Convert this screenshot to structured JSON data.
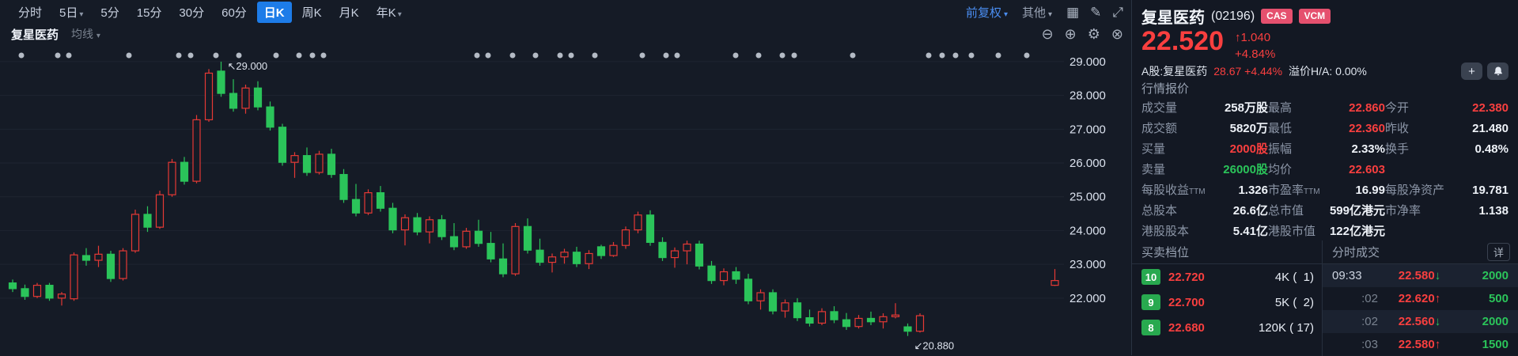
{
  "toolbar": {
    "tabs": [
      {
        "id": "minute",
        "label": "分时",
        "active": false,
        "chevron": false
      },
      {
        "id": "5day",
        "label": "5日",
        "active": false,
        "chevron": true
      },
      {
        "id": "5min",
        "label": "5分",
        "active": false,
        "chevron": false
      },
      {
        "id": "15min",
        "label": "15分",
        "active": false,
        "chevron": false
      },
      {
        "id": "30min",
        "label": "30分",
        "active": false,
        "chevron": false
      },
      {
        "id": "60min",
        "label": "60分",
        "active": false,
        "chevron": false
      },
      {
        "id": "daily-k",
        "label": "日K",
        "active": true,
        "chevron": false
      },
      {
        "id": "weekly-k",
        "label": "周K",
        "active": false,
        "chevron": false
      },
      {
        "id": "monthly-k",
        "label": "月K",
        "active": false,
        "chevron": false
      },
      {
        "id": "yearly-k",
        "label": "年K",
        "active": false,
        "chevron": true
      }
    ],
    "adjust_label": "前复权",
    "other_label": "其他",
    "icons": [
      {
        "name": "grid-layout-icon",
        "glyph": "▦"
      },
      {
        "name": "draw-pencil-icon",
        "glyph": "✎"
      },
      {
        "name": "fullscreen-icon",
        "glyph": "⤢"
      }
    ]
  },
  "chart_header": {
    "title": "复星医药",
    "ma_label": "均线",
    "icons": [
      {
        "name": "zoom-out-icon",
        "glyph": "⊖"
      },
      {
        "name": "zoom-in-icon",
        "glyph": "⊕"
      },
      {
        "name": "settings-gear-icon",
        "glyph": "⚙"
      },
      {
        "name": "close-chart-icon",
        "glyph": "⊗"
      }
    ]
  },
  "chart_data": {
    "type": "candlestick",
    "title": "复星医药 日K (前复权)",
    "ylim": [
      20.31,
      29.42
    ],
    "y_ticks": [
      29.0,
      28.0,
      27.0,
      26.0,
      25.0,
      24.0,
      23.0,
      22.0
    ],
    "tick_decimals": 3,
    "grid": true,
    "legend_position": "none",
    "colors": {
      "up": "#e53935",
      "down": "#2bc45a",
      "grid": "#1e2531",
      "axis_text": "#dbe2ee",
      "dot": "#b4bbc5"
    },
    "annotations": [
      {
        "name": "high-annotation",
        "text": "29.000",
        "arrow": "↖",
        "candle_index": 17,
        "anchor": "high"
      },
      {
        "name": "low-annotation",
        "text": "20.880",
        "arrow": "↙",
        "candle_index": 73,
        "anchor": "low"
      }
    ],
    "event_dot_x": [
      27,
      73,
      87,
      163,
      226,
      241,
      273,
      302,
      349,
      378,
      395,
      409,
      603,
      617,
      648,
      677,
      708,
      722,
      752,
      812,
      842,
      856,
      930,
      959,
      989,
      1004,
      1078,
      1174,
      1191,
      1208,
      1228,
      1262,
      1298
    ],
    "candles": [
      [
        22.45,
        22.55,
        22.18,
        22.28
      ],
      [
        22.28,
        22.4,
        21.95,
        22.05
      ],
      [
        22.05,
        22.45,
        22.0,
        22.38
      ],
      [
        22.38,
        22.45,
        21.92,
        22.0
      ],
      [
        22.0,
        22.18,
        21.78,
        22.12
      ],
      [
        21.98,
        23.35,
        21.92,
        23.28
      ],
      [
        23.26,
        23.48,
        22.96,
        23.12
      ],
      [
        23.12,
        23.55,
        22.92,
        23.3
      ],
      [
        23.3,
        23.4,
        22.48,
        22.58
      ],
      [
        22.58,
        23.48,
        22.52,
        23.4
      ],
      [
        23.4,
        24.62,
        23.34,
        24.48
      ],
      [
        24.48,
        24.72,
        23.96,
        24.1
      ],
      [
        24.1,
        25.18,
        24.05,
        25.06
      ],
      [
        25.06,
        26.12,
        25.0,
        26.02
      ],
      [
        26.02,
        26.18,
        25.36,
        25.46
      ],
      [
        25.46,
        27.42,
        25.4,
        27.28
      ],
      [
        27.28,
        28.78,
        27.22,
        28.66
      ],
      [
        28.72,
        29.0,
        27.96,
        28.06
      ],
      [
        28.06,
        28.48,
        27.52,
        27.62
      ],
      [
        27.62,
        28.32,
        27.46,
        28.22
      ],
      [
        28.22,
        28.42,
        27.56,
        27.66
      ],
      [
        27.66,
        27.82,
        26.96,
        27.06
      ],
      [
        27.06,
        27.16,
        25.92,
        26.02
      ],
      [
        26.02,
        26.32,
        25.56,
        26.22
      ],
      [
        26.22,
        26.46,
        25.62,
        25.72
      ],
      [
        25.72,
        26.36,
        25.66,
        26.26
      ],
      [
        26.26,
        26.42,
        25.56,
        25.66
      ],
      [
        25.66,
        25.82,
        24.82,
        24.92
      ],
      [
        24.92,
        25.38,
        24.42,
        24.52
      ],
      [
        24.52,
        25.22,
        24.46,
        25.12
      ],
      [
        25.12,
        25.32,
        24.56,
        24.66
      ],
      [
        24.66,
        24.82,
        23.92,
        24.02
      ],
      [
        24.02,
        24.48,
        23.56,
        24.38
      ],
      [
        24.38,
        24.52,
        23.86,
        23.96
      ],
      [
        23.96,
        24.42,
        23.62,
        24.32
      ],
      [
        24.32,
        24.46,
        23.72,
        23.82
      ],
      [
        23.82,
        24.22,
        23.42,
        23.52
      ],
      [
        23.52,
        24.08,
        23.46,
        23.98
      ],
      [
        23.98,
        24.32,
        23.52,
        23.62
      ],
      [
        23.62,
        23.96,
        23.06,
        23.16
      ],
      [
        23.16,
        23.62,
        22.62,
        22.72
      ],
      [
        22.72,
        24.22,
        22.66,
        24.12
      ],
      [
        24.12,
        24.36,
        23.32,
        23.42
      ],
      [
        23.42,
        23.76,
        22.96,
        23.06
      ],
      [
        23.06,
        23.32,
        22.76,
        23.22
      ],
      [
        23.22,
        23.46,
        23.02,
        23.36
      ],
      [
        23.36,
        23.52,
        22.92,
        23.02
      ],
      [
        23.02,
        23.42,
        22.86,
        23.32
      ],
      [
        23.52,
        23.58,
        23.16,
        23.26
      ],
      [
        23.26,
        23.66,
        23.22,
        23.56
      ],
      [
        23.56,
        24.12,
        23.46,
        24.02
      ],
      [
        24.02,
        24.56,
        23.92,
        24.46
      ],
      [
        24.46,
        24.6,
        23.55,
        23.65
      ],
      [
        23.65,
        23.8,
        23.1,
        23.2
      ],
      [
        23.2,
        23.5,
        22.9,
        23.4
      ],
      [
        23.4,
        23.7,
        23.0,
        23.6
      ],
      [
        23.6,
        23.7,
        22.85,
        22.95
      ],
      [
        22.95,
        23.1,
        22.42,
        22.52
      ],
      [
        22.52,
        22.88,
        22.38,
        22.78
      ],
      [
        22.78,
        22.92,
        22.42,
        22.56
      ],
      [
        22.56,
        22.72,
        21.82,
        21.92
      ],
      [
        21.92,
        22.26,
        21.66,
        22.16
      ],
      [
        22.16,
        22.26,
        21.52,
        21.62
      ],
      [
        21.62,
        21.96,
        21.42,
        21.86
      ],
      [
        21.86,
        22.0,
        21.32,
        21.42
      ],
      [
        21.42,
        21.66,
        21.16,
        21.26
      ],
      [
        21.26,
        21.7,
        21.2,
        21.6
      ],
      [
        21.6,
        21.76,
        21.26,
        21.36
      ],
      [
        21.36,
        21.56,
        21.06,
        21.16
      ],
      [
        21.16,
        21.5,
        21.1,
        21.4
      ],
      [
        21.4,
        21.6,
        21.2,
        21.3
      ],
      [
        21.3,
        21.55,
        21.1,
        21.45
      ],
      [
        21.45,
        21.85,
        21.4,
        21.5
      ],
      [
        21.15,
        21.25,
        20.88,
        21.02
      ],
      [
        21.02,
        21.55,
        20.98,
        21.48
      ],
      null,
      null,
      null,
      null,
      null,
      null,
      null,
      null,
      null,
      null,
      [
        22.38,
        22.86,
        22.36,
        22.52
      ]
    ]
  },
  "panel": {
    "name": "复星医药",
    "code": "(02196)",
    "badges": [
      "CAS",
      "VCM"
    ],
    "price": "22.520",
    "change_arrow": "↑",
    "change_value": "1.040",
    "change_pct": "+4.84%",
    "ashare": {
      "label": "A股:复星医药",
      "price": "28.67",
      "pct": "+4.44%",
      "premium": "溢价H/A: 0.00%"
    },
    "quote_section_title": "行情报价",
    "quote_rows": [
      [
        {
          "label": "成交量",
          "value": "258万股",
          "color": "white"
        },
        {
          "label": "最高",
          "value": "22.860",
          "color": "red"
        },
        {
          "label": "今开",
          "value": "22.380",
          "color": "red"
        }
      ],
      [
        {
          "label": "成交额",
          "value": "5820万",
          "color": "white"
        },
        {
          "label": "最低",
          "value": "22.360",
          "color": "red"
        },
        {
          "label": "昨收",
          "value": "21.480",
          "color": "white"
        }
      ],
      [
        {
          "label": "买量",
          "value": "2000股",
          "color": "red"
        },
        {
          "label": "振幅",
          "value": "2.33%",
          "color": "white"
        },
        {
          "label": "换手",
          "value": "0.48%",
          "color": "white"
        }
      ],
      [
        {
          "label": "卖量",
          "value": "26000股",
          "color": "green"
        },
        {
          "label": "均价",
          "value": "22.603",
          "color": "red"
        },
        {
          "label": "",
          "value": "",
          "color": "white"
        }
      ]
    ],
    "fundamental_rows": [
      [
        {
          "label": "每股收益TTM",
          "value": "1.326",
          "color": "white"
        },
        {
          "label": "市盈率TTM",
          "value": "16.99",
          "color": "white"
        },
        {
          "label": "每股净资产",
          "value": "19.781",
          "color": "white"
        }
      ],
      [
        {
          "label": "总股本",
          "value": "26.6亿",
          "color": "white"
        },
        {
          "label": "总市值",
          "value": "599亿港元",
          "color": "white"
        },
        {
          "label": "市净率",
          "value": "1.138",
          "color": "white"
        }
      ],
      [
        {
          "label": "港股股本",
          "value": "5.41亿",
          "color": "white"
        },
        {
          "label": "港股市值",
          "value": "122亿港元",
          "color": "white"
        },
        {
          "label": "",
          "value": "",
          "color": "white"
        }
      ]
    ],
    "orderbook": {
      "title": "买卖档位",
      "rows": [
        {
          "level": "10",
          "price": "22.720",
          "size": "4K (  1)"
        },
        {
          "level": "9",
          "price": "22.700",
          "size": "5K (  2)"
        },
        {
          "level": "8",
          "price": "22.680",
          "size": "120K ( 17)"
        }
      ]
    },
    "ticks": {
      "title": "分时成交",
      "detail_label": "详",
      "rows": [
        {
          "time": "09:33",
          "dim": false,
          "price": "22.580",
          "dir": "down",
          "vol": "2000",
          "stripe": true
        },
        {
          "time": ":02",
          "dim": true,
          "price": "22.620",
          "dir": "up",
          "vol": "500",
          "stripe": false
        },
        {
          "time": ":02",
          "dim": true,
          "price": "22.560",
          "dir": "down",
          "vol": "2000",
          "stripe": true
        },
        {
          "time": ":03",
          "dim": true,
          "price": "22.580",
          "dir": "up",
          "vol": "1500",
          "stripe": false
        }
      ]
    }
  }
}
